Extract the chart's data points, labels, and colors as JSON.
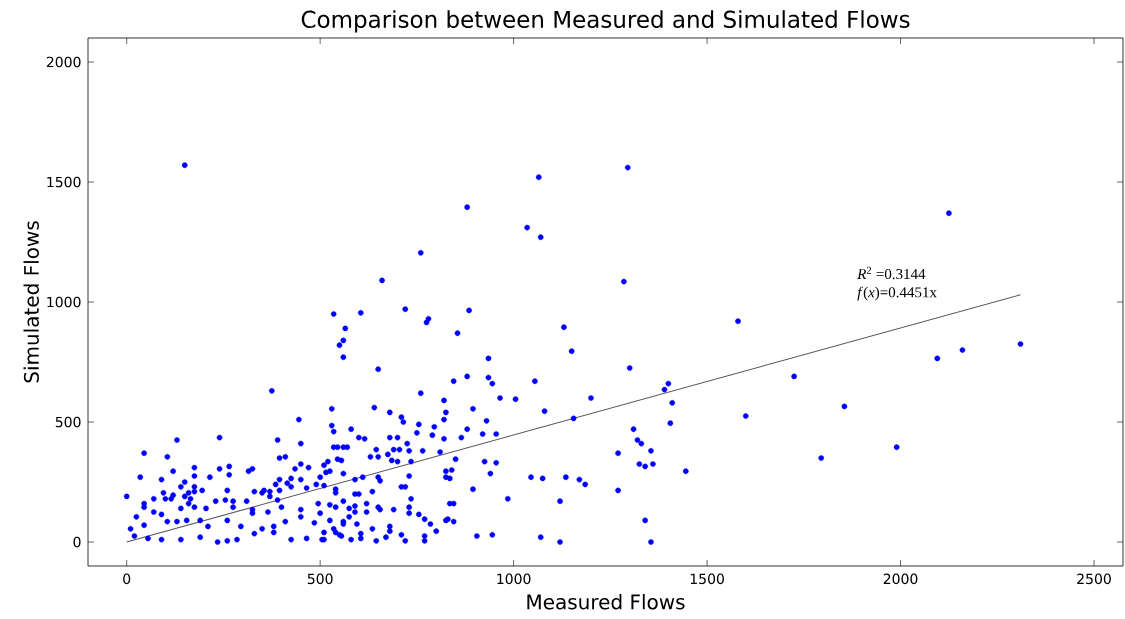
{
  "chart_data": {
    "type": "scatter",
    "title": "Comparison between Measured and Simulated Flows",
    "xlabel": "Measured Flows",
    "ylabel": "Simulated Flows",
    "xlim": [
      -100,
      2575
    ],
    "ylim": [
      -100,
      2100
    ],
    "xticks": [
      0,
      500,
      1000,
      1500,
      2000,
      2500
    ],
    "yticks": [
      0,
      500,
      1000,
      1500,
      2000
    ],
    "marker": "circle",
    "series": [
      {
        "color": "#0000ff",
        "x": [
          150,
          1065,
          1295,
          880,
          1035,
          1070,
          760,
          660,
          1285,
          2125,
          535,
          605,
          720,
          885,
          775,
          780,
          565,
          560,
          550,
          560,
          855,
          1130,
          1150,
          650,
          935,
          845,
          880,
          935,
          945,
          1055,
          760,
          820,
          825,
          820,
          895,
          965,
          1005,
          1080,
          530,
          640,
          680,
          710,
          715,
          755,
          750,
          795,
          790,
          880,
          930,
          920,
          955,
          865,
          820,
          810,
          850,
          925,
          955,
          940,
          1045,
          1075,
          1135,
          985,
          1120,
          895,
          825,
          840,
          835,
          825,
          835,
          845,
          825,
          830,
          845,
          905,
          945,
          1070,
          1120,
          800,
          680,
          700,
          725,
          730,
          690,
          705,
          675,
          685,
          700,
          735,
          765,
          630,
          650,
          645,
          730,
          650,
          655,
          610,
          590,
          710,
          720,
          735,
          635,
          690,
          730,
          730,
          755,
          770,
          785,
          680,
          680,
          635,
          710,
          720,
          670,
          645,
          770,
          770,
          530,
          535,
          580,
          600,
          615,
          535,
          545,
          560,
          570,
          545,
          555,
          560,
          520,
          510,
          525,
          515,
          590,
          600,
          540,
          540,
          560,
          525,
          540,
          575,
          590,
          620,
          620,
          650,
          655,
          590,
          575,
          525,
          560,
          560,
          595,
          535,
          540,
          550,
          555,
          510,
          510,
          605,
          605,
          580,
          1580,
          1300,
          1200,
          1400,
          1390,
          1410,
          1155,
          1725,
          1855,
          1600,
          1405,
          1310,
          1320,
          1330,
          1355,
          1270,
          1325,
          1340,
          1360,
          1445,
          1795,
          1170,
          1185,
          1270,
          1340,
          1355,
          2095,
          2160,
          2310,
          1990,
          375,
          445,
          130,
          240,
          390,
          450,
          45,
          105,
          395,
          410,
          120,
          175,
          175,
          240,
          265,
          265,
          315,
          325,
          450,
          435,
          470,
          35,
          90,
          215,
          150,
          140,
          175,
          175,
          195,
          260,
          330,
          355,
          370,
          385,
          395,
          395,
          415,
          425,
          425,
          450,
          465,
          490,
          500,
          510,
          0,
          95,
          120,
          115,
          100,
          70,
          45,
          45,
          150,
          160,
          165,
          160,
          140,
          175,
          205,
          230,
          255,
          275,
          310,
          350,
          370,
          390,
          25,
          10,
          70,
          90,
          105,
          130,
          155,
          190,
          210,
          45,
          260,
          295,
          325,
          350,
          380,
          410,
          450,
          485,
          500,
          20,
          55,
          90,
          140,
          190,
          235,
          260,
          285,
          330,
          380,
          425,
          465,
          505,
          275,
          325,
          365,
          400,
          450,
          495
        ],
        "values": [
          1570,
          1520,
          1560,
          1395,
          1310,
          1270,
          1205,
          1090,
          1085,
          1370,
          950,
          955,
          970,
          965,
          915,
          930,
          890,
          840,
          820,
          770,
          870,
          895,
          795,
          720,
          765,
          670,
          690,
          685,
          660,
          670,
          620,
          590,
          540,
          510,
          555,
          600,
          595,
          545,
          555,
          560,
          540,
          520,
          500,
          490,
          455,
          480,
          445,
          470,
          505,
          450,
          450,
          435,
          430,
          375,
          345,
          335,
          330,
          285,
          270,
          265,
          270,
          180,
          170,
          220,
          295,
          300,
          265,
          270,
          160,
          160,
          90,
          95,
          85,
          25,
          30,
          20,
          0,
          45,
          435,
          435,
          410,
          380,
          385,
          385,
          365,
          340,
          335,
          335,
          380,
          355,
          355,
          385,
          275,
          270,
          255,
          270,
          260,
          230,
          230,
          180,
          210,
          135,
          145,
          120,
          115,
          95,
          75,
          65,
          45,
          55,
          30,
          5,
          20,
          5,
          25,
          5,
          485,
          460,
          470,
          435,
          430,
          395,
          395,
          395,
          395,
          345,
          340,
          285,
          335,
          320,
          295,
          290,
          200,
          200,
          220,
          205,
          170,
          155,
          145,
          140,
          150,
          160,
          125,
          145,
          135,
          125,
          105,
          90,
          85,
          75,
          75,
          55,
          40,
          30,
          25,
          40,
          10,
          35,
          15,
          10,
          920,
          725,
          600,
          660,
          635,
          580,
          515,
          690,
          565,
          525,
          495,
          470,
          425,
          410,
          380,
          370,
          325,
          315,
          325,
          295,
          350,
          260,
          240,
          215,
          90,
          0,
          765,
          800,
          825,
          395,
          630,
          510,
          425,
          435,
          425,
          410,
          370,
          355,
          350,
          355,
          295,
          310,
          275,
          305,
          315,
          280,
          295,
          305,
          325,
          305,
          310,
          270,
          260,
          270,
          250,
          230,
          230,
          210,
          215,
          215,
          210,
          215,
          210,
          240,
          260,
          215,
          245,
          265,
          230,
          260,
          225,
          240,
          270,
          235,
          190,
          205,
          195,
          180,
          180,
          180,
          160,
          145,
          190,
          205,
          180,
          160,
          140,
          145,
          140,
          170,
          175,
          170,
          170,
          205,
          190,
          175,
          105,
          55,
          125,
          115,
          85,
          85,
          90,
          90,
          65,
          70,
          90,
          65,
          120,
          55,
          65,
          85,
          105,
          80,
          120,
          25,
          15,
          10,
          10,
          20,
          0,
          5,
          10,
          35,
          40,
          10,
          15,
          10,
          145,
          135,
          125,
          145,
          135,
          160
        ]
      },
      {
        "type": "line",
        "color": "#555555",
        "marker": "none",
        "x": [
          0,
          2310
        ],
        "values": [
          0,
          1030
        ]
      }
    ],
    "annotations": [
      "*R*$^{2}$ =0.3144",
      "*f*(*x*)=0.4451x"
    ]
  }
}
